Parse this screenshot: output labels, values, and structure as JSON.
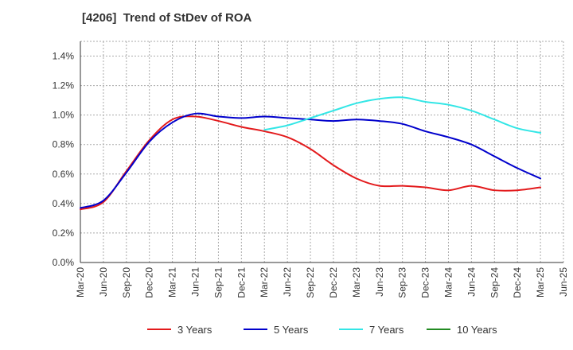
{
  "chart_data": {
    "type": "line",
    "title": "[4206]  Trend of StDev of ROA",
    "xlabel": "",
    "ylabel": "",
    "x": [
      "Mar-20",
      "Jun-20",
      "Sep-20",
      "Dec-20",
      "Mar-21",
      "Jun-21",
      "Sep-21",
      "Dec-21",
      "Mar-22",
      "Jun-22",
      "Sep-22",
      "Dec-22",
      "Mar-23",
      "Jun-23",
      "Sep-23",
      "Dec-23",
      "Mar-24",
      "Jun-24",
      "Sep-24",
      "Dec-24",
      "Mar-25",
      "Jun-25"
    ],
    "ylim": [
      0,
      1.5
    ],
    "yticks": [
      "0.0%",
      "0.2%",
      "0.4%",
      "0.6%",
      "0.8%",
      "1.0%",
      "1.2%",
      "1.4%"
    ],
    "grid": true,
    "legend_position": "bottom",
    "series": [
      {
        "name": "3 Years",
        "color": "#e31a1c",
        "values": [
          0.36,
          0.41,
          0.62,
          0.83,
          0.97,
          0.99,
          0.96,
          0.92,
          0.89,
          0.85,
          0.77,
          0.66,
          0.57,
          0.52,
          0.52,
          0.51,
          0.49,
          0.52,
          0.49,
          0.49,
          0.51,
          null
        ]
      },
      {
        "name": "5 Years",
        "color": "#0000cc",
        "values": [
          0.37,
          0.42,
          0.61,
          0.82,
          0.95,
          1.01,
          0.99,
          0.98,
          0.99,
          0.98,
          0.97,
          0.96,
          0.97,
          0.96,
          0.94,
          0.89,
          0.85,
          0.8,
          0.72,
          0.64,
          0.57,
          null
        ]
      },
      {
        "name": "7 Years",
        "color": "#33e6e6",
        "values": [
          null,
          null,
          null,
          null,
          null,
          null,
          null,
          null,
          0.9,
          0.93,
          0.98,
          1.03,
          1.08,
          1.11,
          1.12,
          1.09,
          1.07,
          1.03,
          0.97,
          0.91,
          0.88,
          null
        ]
      },
      {
        "name": "10 Years",
        "color": "#228b22",
        "values": [
          null,
          null,
          null,
          null,
          null,
          null,
          null,
          null,
          null,
          null,
          null,
          null,
          null,
          null,
          null,
          null,
          null,
          null,
          null,
          null,
          null,
          null
        ]
      }
    ]
  }
}
